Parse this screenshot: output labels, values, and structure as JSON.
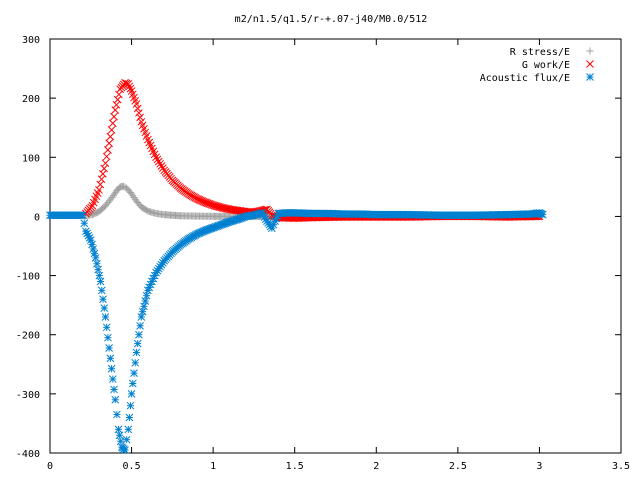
{
  "chart_data": {
    "type": "scatter",
    "title": "m2/n1.5/q1.5/r-+.07-j40/M0.0/512",
    "xlabel": "",
    "ylabel": "",
    "xlim": [
      0,
      3.5
    ],
    "ylim": [
      -400,
      300
    ],
    "grid": false,
    "legend_position": "top-right",
    "x_ticks": [
      0,
      0.5,
      1,
      1.5,
      2,
      2.5,
      3,
      3.5
    ],
    "x_tick_labels": [
      "0",
      "0.5",
      "1",
      "1.5",
      "2",
      "2.5",
      "3",
      "3.5"
    ],
    "y_ticks": [
      -400,
      -300,
      -200,
      -100,
      0,
      100,
      200,
      300
    ],
    "y_tick_labels": [
      "-400",
      "-300",
      "-200",
      "-100",
      "0",
      "100",
      "200",
      "300"
    ],
    "series": [
      {
        "name": "R stress/E",
        "marker": "plus",
        "color": "#a0a0a0",
        "points": [
          [
            0.21,
            1
          ],
          [
            0.26,
            3
          ],
          [
            0.3,
            8
          ],
          [
            0.34,
            18
          ],
          [
            0.38,
            32
          ],
          [
            0.41,
            44
          ],
          [
            0.43,
            50
          ],
          [
            0.45,
            51
          ],
          [
            0.47,
            48
          ],
          [
            0.5,
            38
          ],
          [
            0.53,
            26
          ],
          [
            0.56,
            16
          ],
          [
            0.6,
            9
          ],
          [
            0.65,
            5
          ],
          [
            0.7,
            3
          ],
          [
            0.8,
            1
          ],
          [
            0.9,
            0.5
          ],
          [
            1.0,
            0.2
          ],
          [
            1.1,
            0
          ],
          [
            1.2,
            0
          ],
          [
            1.3,
            0
          ],
          [
            1.4,
            0
          ],
          [
            1.6,
            0
          ],
          [
            1.8,
            0
          ],
          [
            2.0,
            0
          ],
          [
            2.5,
            0
          ],
          [
            3.0,
            0
          ]
        ]
      },
      {
        "name": "G work/E",
        "marker": "cross",
        "color": "#ff0000",
        "points": [
          [
            0.22,
            5
          ],
          [
            0.26,
            18
          ],
          [
            0.3,
            45
          ],
          [
            0.34,
            90
          ],
          [
            0.37,
            135
          ],
          [
            0.4,
            180
          ],
          [
            0.43,
            215
          ],
          [
            0.46,
            226
          ],
          [
            0.48,
            224
          ],
          [
            0.5,
            212
          ],
          [
            0.53,
            190
          ],
          [
            0.56,
            160
          ],
          [
            0.6,
            130
          ],
          [
            0.65,
            100
          ],
          [
            0.7,
            78
          ],
          [
            0.75,
            61
          ],
          [
            0.8,
            48
          ],
          [
            0.85,
            38
          ],
          [
            0.9,
            30
          ],
          [
            0.95,
            24
          ],
          [
            1.0,
            19
          ],
          [
            1.05,
            15
          ],
          [
            1.1,
            12
          ],
          [
            1.15,
            10
          ],
          [
            1.2,
            8
          ],
          [
            1.25,
            7
          ],
          [
            1.3,
            10
          ],
          [
            1.33,
            12
          ],
          [
            1.36,
            2
          ],
          [
            1.4,
            -2
          ],
          [
            1.5,
            -3
          ],
          [
            1.6,
            -2
          ],
          [
            1.8,
            -1
          ],
          [
            2.0,
            -1
          ],
          [
            2.2,
            -1
          ],
          [
            2.4,
            0
          ],
          [
            2.6,
            0
          ],
          [
            2.8,
            -1
          ],
          [
            3.0,
            0
          ]
        ]
      },
      {
        "name": "Acoustic flux/E",
        "marker": "star",
        "color": "#0080d0",
        "points": [
          [
            0.0,
            2
          ],
          [
            0.05,
            2
          ],
          [
            0.1,
            2
          ],
          [
            0.15,
            2
          ],
          [
            0.2,
            2
          ],
          [
            0.22,
            -25
          ],
          [
            0.25,
            -40
          ],
          [
            0.28,
            -70
          ],
          [
            0.31,
            -110
          ],
          [
            0.34,
            -170
          ],
          [
            0.37,
            -240
          ],
          [
            0.4,
            -310
          ],
          [
            0.42,
            -360
          ],
          [
            0.44,
            -390
          ],
          [
            0.46,
            -395
          ],
          [
            0.48,
            -360
          ],
          [
            0.5,
            -300
          ],
          [
            0.53,
            -230
          ],
          [
            0.56,
            -170
          ],
          [
            0.6,
            -125
          ],
          [
            0.65,
            -95
          ],
          [
            0.7,
            -75
          ],
          [
            0.75,
            -60
          ],
          [
            0.8,
            -48
          ],
          [
            0.85,
            -38
          ],
          [
            0.9,
            -30
          ],
          [
            0.95,
            -24
          ],
          [
            1.0,
            -19
          ],
          [
            1.05,
            -14
          ],
          [
            1.1,
            -9
          ],
          [
            1.15,
            -5
          ],
          [
            1.2,
            0
          ],
          [
            1.25,
            2
          ],
          [
            1.3,
            6
          ],
          [
            1.33,
            -8
          ],
          [
            1.36,
            -20
          ],
          [
            1.38,
            -8
          ],
          [
            1.4,
            5
          ],
          [
            1.45,
            6
          ],
          [
            1.5,
            6
          ],
          [
            1.6,
            5
          ],
          [
            1.7,
            5
          ],
          [
            1.8,
            4
          ],
          [
            1.9,
            4
          ],
          [
            2.0,
            3
          ],
          [
            2.2,
            3
          ],
          [
            2.4,
            2
          ],
          [
            2.6,
            2
          ],
          [
            2.8,
            3
          ],
          [
            2.95,
            4
          ],
          [
            3.0,
            6
          ],
          [
            3.02,
            3
          ]
        ]
      }
    ]
  }
}
